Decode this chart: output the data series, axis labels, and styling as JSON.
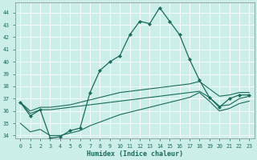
{
  "xlabel": "Humidex (Indice chaleur)",
  "bg_color": "#cceee8",
  "grid_color": "#ffffff",
  "line_color": "#1a6b5a",
  "xlim": [
    -0.5,
    23.5
  ],
  "ylim": [
    33.8,
    44.8
  ],
  "xticks": [
    0,
    1,
    2,
    3,
    4,
    5,
    6,
    7,
    8,
    9,
    10,
    11,
    12,
    13,
    14,
    15,
    16,
    17,
    18,
    19,
    20,
    21,
    22,
    23
  ],
  "yticks": [
    34,
    35,
    36,
    37,
    38,
    39,
    40,
    41,
    42,
    43,
    44
  ],
  "series": {
    "main": [
      36.7,
      35.6,
      36.1,
      33.8,
      33.9,
      34.4,
      34.6,
      37.5,
      39.3,
      40.0,
      40.5,
      42.2,
      43.3,
      43.1,
      44.4,
      43.3,
      42.2,
      40.2,
      38.5,
      37.1,
      36.3,
      37.0,
      37.3,
      37.3
    ],
    "upper": [
      36.7,
      36.0,
      36.3,
      36.3,
      36.4,
      36.5,
      36.7,
      36.9,
      37.1,
      37.3,
      37.5,
      37.6,
      37.7,
      37.8,
      37.9,
      38.0,
      38.1,
      38.2,
      38.4,
      37.8,
      37.2,
      37.3,
      37.5,
      37.5
    ],
    "mid": [
      36.7,
      35.8,
      36.1,
      36.1,
      36.2,
      36.3,
      36.4,
      36.5,
      36.6,
      36.7,
      36.8,
      36.9,
      37.0,
      37.1,
      37.2,
      37.3,
      37.4,
      37.5,
      37.6,
      37.1,
      36.4,
      36.5,
      37.0,
      37.2
    ],
    "lower": [
      35.0,
      34.3,
      34.5,
      34.0,
      34.0,
      34.2,
      34.4,
      34.8,
      35.1,
      35.4,
      35.7,
      35.9,
      36.1,
      36.3,
      36.5,
      36.7,
      36.9,
      37.1,
      37.5,
      36.8,
      36.0,
      36.2,
      36.6,
      36.8
    ]
  }
}
